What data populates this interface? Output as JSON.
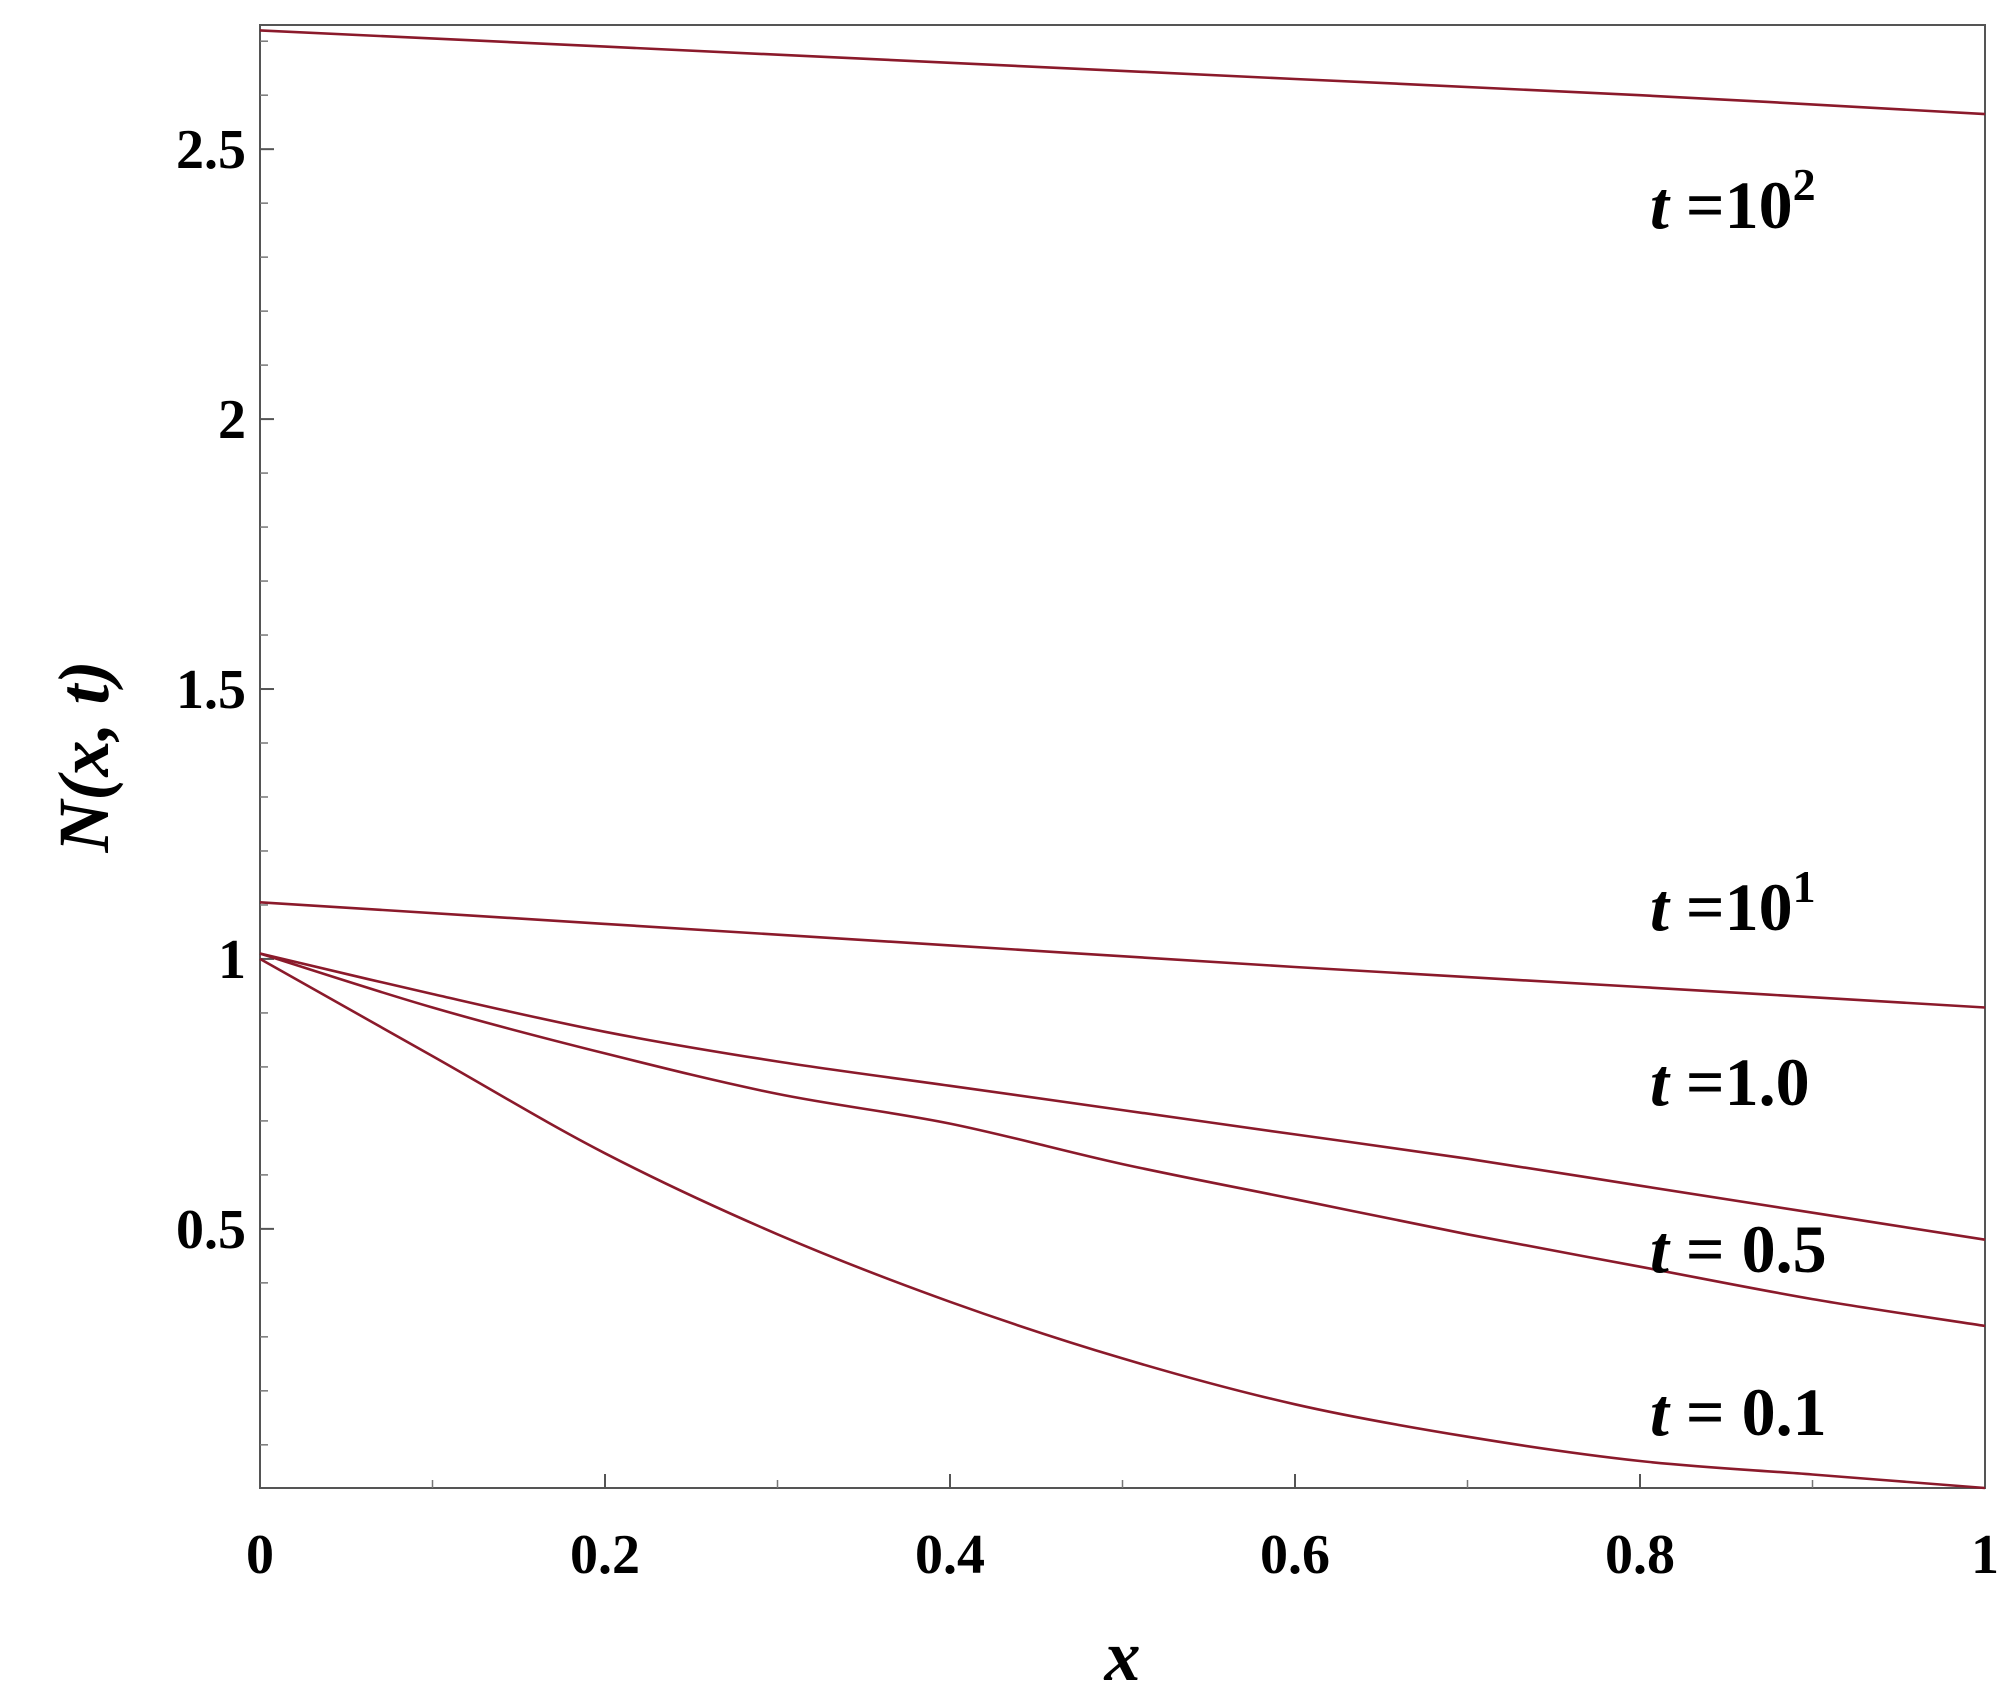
{
  "chart_data": {
    "type": "line",
    "xlabel": "x",
    "ylabel": "N(x, t)",
    "xlim": [
      0,
      1
    ],
    "ylim": [
      0.02,
      2.73
    ],
    "grid": false,
    "x_ticks": [
      "0",
      "0.2",
      "0.4",
      "0.6",
      "0.8",
      "1"
    ],
    "y_ticks": [
      "0.5",
      "1",
      "1.5",
      "2",
      "2.5"
    ],
    "line_color": "#8b1a2b",
    "series": [
      {
        "name": "t =10^2",
        "label_var": "t",
        "label_text": " =10",
        "label_sup": "2",
        "x": [
          0,
          0.2,
          0.4,
          0.6,
          0.8,
          1.0
        ],
        "y": [
          2.72,
          2.69,
          2.66,
          2.63,
          2.6,
          2.565
        ]
      },
      {
        "name": "t =10^1",
        "label_var": "t",
        "label_text": " =10",
        "label_sup": "1",
        "x": [
          0,
          0.2,
          0.4,
          0.6,
          0.8,
          1.0
        ],
        "y": [
          1.105,
          1.065,
          1.025,
          0.985,
          0.948,
          0.91
        ]
      },
      {
        "name": "t =1.0",
        "label_var": "t",
        "label_text": " =1.0",
        "label_sup": "",
        "x": [
          0,
          0.1,
          0.2,
          0.3,
          0.4,
          0.5,
          0.6,
          0.7,
          0.8,
          0.9,
          1.0
        ],
        "y": [
          1.01,
          0.935,
          0.865,
          0.81,
          0.765,
          0.72,
          0.675,
          0.63,
          0.58,
          0.53,
          0.48
        ]
      },
      {
        "name": "t = 0.5",
        "label_var": "t",
        "label_text": " = 0.5",
        "label_sup": "",
        "x": [
          0,
          0.1,
          0.2,
          0.3,
          0.4,
          0.5,
          0.6,
          0.7,
          0.8,
          0.9,
          1.0
        ],
        "y": [
          1.01,
          0.91,
          0.825,
          0.75,
          0.695,
          0.62,
          0.555,
          0.49,
          0.43,
          0.37,
          0.32
        ]
      },
      {
        "name": "t = 0.1",
        "label_var": "t",
        "label_text": " = 0.1",
        "label_sup": "",
        "x": [
          0,
          0.1,
          0.2,
          0.3,
          0.4,
          0.5,
          0.6,
          0.7,
          0.8,
          0.9,
          1.0
        ],
        "y": [
          1.0,
          0.82,
          0.64,
          0.49,
          0.365,
          0.26,
          0.175,
          0.115,
          0.07,
          0.045,
          0.02
        ]
      }
    ]
  }
}
